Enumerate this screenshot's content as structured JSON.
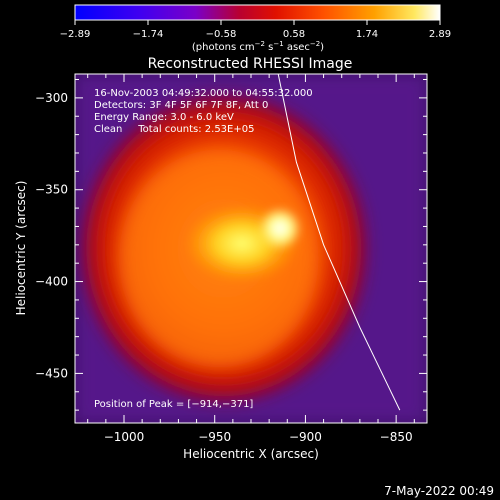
{
  "chart_data": {
    "type": "heatmap",
    "title": "Reconstructed RHESSI Image",
    "xlabel": "Heliocentric X (arcsec)",
    "ylabel": "Heliocentric Y (arcsec)",
    "xlim": [
      -1027,
      -833
    ],
    "ylim": [
      -477,
      -287
    ],
    "xticks": [
      -1000,
      -950,
      -900,
      -850
    ],
    "yticks": [
      -300,
      -350,
      -400,
      -450
    ],
    "xtick_labels": [
      "−1000",
      "−950",
      "−900",
      "−850"
    ],
    "ytick_labels": [
      "−300",
      "−350",
      "−400",
      "−450"
    ],
    "colorbar": {
      "range": [
        -2.89,
        2.89
      ],
      "ticks": [
        "−2.89",
        "−1.74",
        "−0.58",
        "0.58",
        "1.74",
        "2.89"
      ],
      "label_main": "(photons cm",
      "label_exp1": "−2",
      "label_mid1": " s",
      "label_exp2": "−1",
      "label_mid2": " asec",
      "label_exp3": "−2",
      "label_end": ")",
      "colors": [
        "#0000ff",
        "#7a00c8",
        "#c00000",
        "#ff4000",
        "#ffa000",
        "#ffffff"
      ]
    },
    "annotations": [
      "16-Nov-2003 04:49:32.000 to 04:55:32.000",
      "Detectors: 3F 4F 5F 6F 7F 8F, Att 0",
      "Energy Range: 3.0 - 6.0 keV",
      "Clean     Total counts: 2.53E+05"
    ],
    "peak_label": "Position of Peak = [−914,−371]",
    "peak": {
      "x": -914,
      "y": -371
    },
    "source_center": {
      "x": -945,
      "y": -382
    },
    "limb_curve": [
      [
        -915,
        -287
      ],
      [
        -905,
        -335
      ],
      [
        -890,
        -380
      ],
      [
        -870,
        -425
      ],
      [
        -848,
        -470
      ]
    ]
  },
  "footer": {
    "timestamp": "7-May-2022 00:49"
  }
}
